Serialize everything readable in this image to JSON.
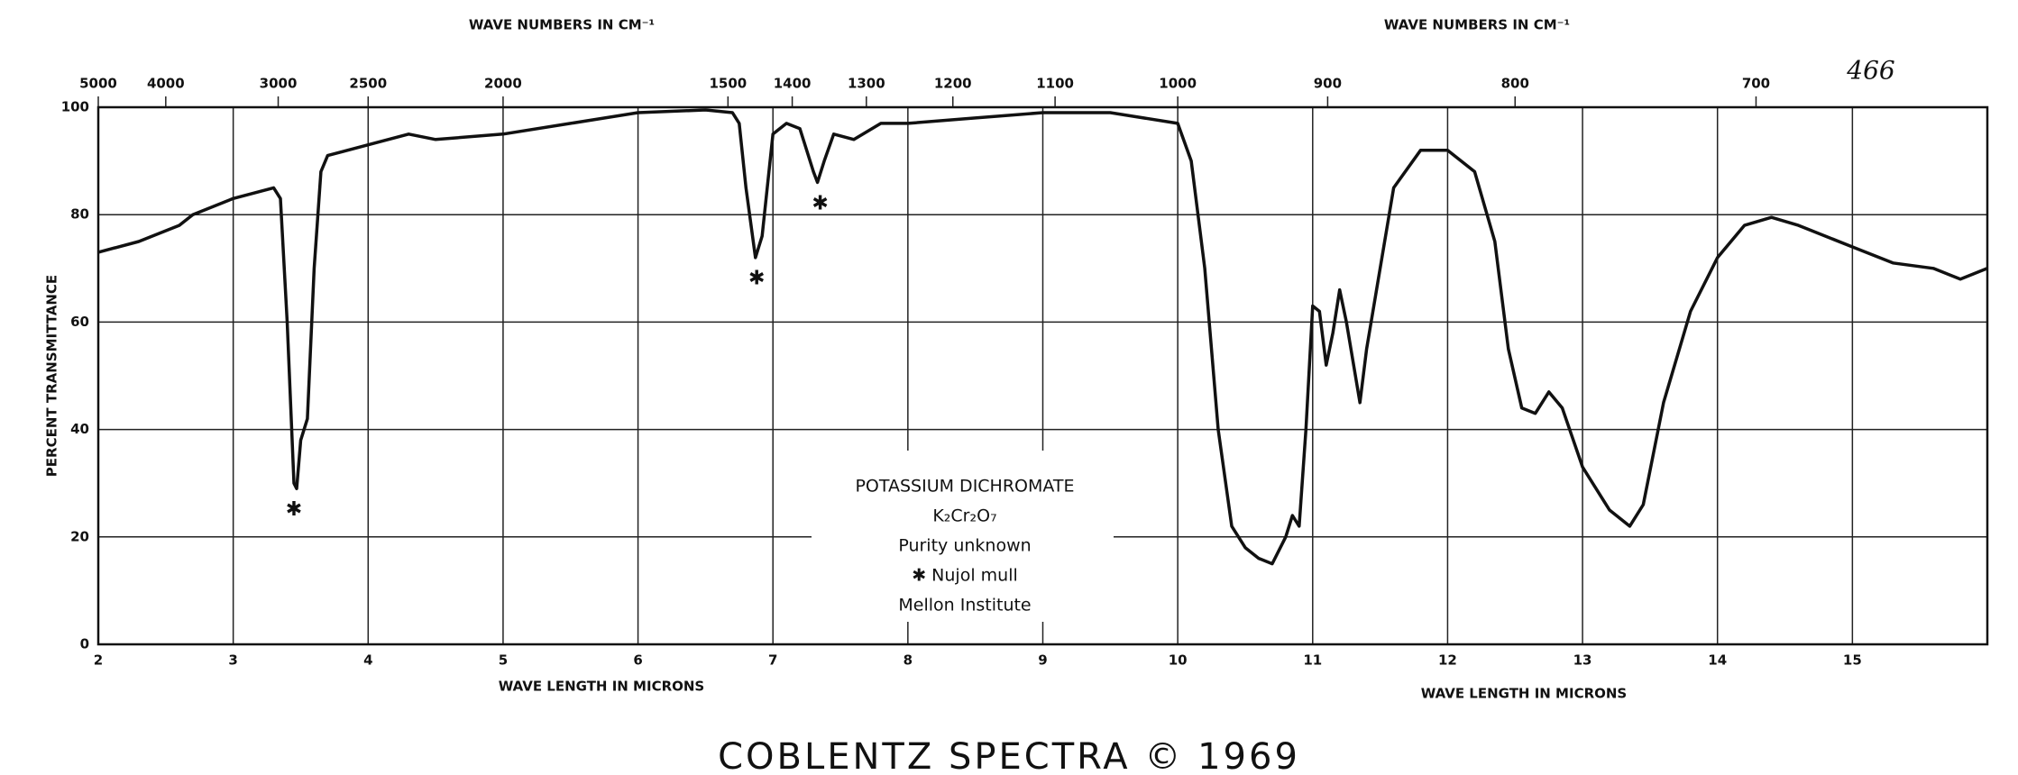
{
  "chart_data": {
    "type": "line",
    "x_label_left": "WAVE LENGTH IN MICRONS",
    "x_label_right": "WAVE LENGTH IN MICRONS",
    "x2_label_left": "WAVE NUMBERS IN CM⁻¹",
    "x2_label_right": "WAVE NUMBERS IN CM⁻¹",
    "y_label": "PERCENT TRANSMITTANCE",
    "handwritten": "466",
    "footer": "COBLENTZ SPECTRA © 1969",
    "legend_box": [
      "POTASSIUM DICHROMATE",
      "K₂Cr₂O₇",
      "Purity unknown",
      "✱ Nujol mull",
      "Mellon Institute"
    ],
    "xlim": [
      2,
      16
    ],
    "ylim": [
      0,
      100
    ],
    "xticks": [
      2,
      3,
      4,
      5,
      6,
      7,
      8,
      9,
      10,
      11,
      12,
      13,
      14,
      15
    ],
    "yticks": [
      0,
      20,
      40,
      60,
      80,
      100
    ],
    "x2ticks": [
      5000,
      4000,
      3000,
      2500,
      2000,
      1500,
      1400,
      1300,
      1200,
      1100,
      1000,
      900,
      800,
      700
    ],
    "grid": true,
    "annotations": [
      {
        "text": "✱",
        "x": 3.45,
        "y": 25
      },
      {
        "text": "✱",
        "x": 6.88,
        "y": 68
      },
      {
        "text": "✱",
        "x": 7.35,
        "y": 82
      }
    ],
    "series": [
      {
        "color": "#111",
        "x": [
          2.0,
          2.3,
          2.6,
          2.7,
          3.0,
          3.3,
          3.35,
          3.4,
          3.45,
          3.47,
          3.5,
          3.55,
          3.6,
          3.65,
          3.7,
          4.0,
          4.3,
          4.5,
          5.0,
          5.5,
          6.0,
          6.5,
          6.7,
          6.75,
          6.8,
          6.87,
          6.92,
          7.0,
          7.1,
          7.2,
          7.3,
          7.33,
          7.38,
          7.45,
          7.6,
          7.8,
          8.0,
          8.5,
          9.0,
          9.5,
          10.0,
          10.1,
          10.2,
          10.3,
          10.4,
          10.5,
          10.6,
          10.7,
          10.8,
          10.85,
          10.9,
          10.95,
          11.0,
          11.05,
          11.1,
          11.15,
          11.2,
          11.25,
          11.35,
          11.4,
          11.5,
          11.6,
          11.8,
          12.0,
          12.2,
          12.35,
          12.45,
          12.55,
          12.65,
          12.75,
          12.85,
          13.0,
          13.2,
          13.35,
          13.45,
          13.6,
          13.8,
          14.0,
          14.2,
          14.4,
          14.6,
          15.0,
          15.3,
          15.6,
          15.8,
          16.0
        ],
        "values": [
          73,
          75,
          78,
          80,
          83,
          85,
          83,
          60,
          30,
          29,
          38,
          42,
          70,
          88,
          91,
          93,
          95,
          94,
          95,
          97,
          99,
          99.5,
          99,
          97,
          85,
          72,
          76,
          95,
          97,
          96,
          88,
          86,
          90,
          95,
          94,
          97,
          97,
          98,
          99,
          99,
          97,
          90,
          70,
          40,
          22,
          18,
          16,
          15,
          20,
          24,
          22,
          40,
          63,
          62,
          52,
          58,
          66,
          60,
          45,
          55,
          70,
          85,
          92,
          92,
          88,
          75,
          55,
          44,
          43,
          47,
          44,
          33,
          25,
          22,
          26,
          45,
          62,
          72,
          78,
          79.5,
          78,
          74,
          71,
          70,
          68,
          70
        ]
      }
    ]
  }
}
